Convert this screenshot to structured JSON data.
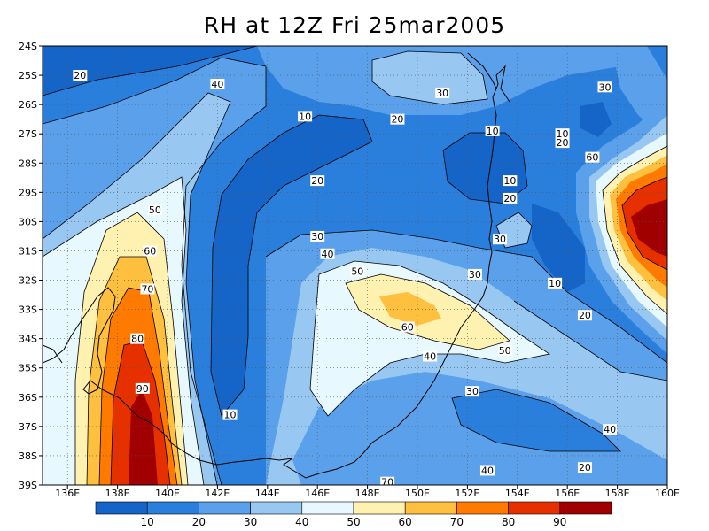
{
  "title": "RH at 12Z Fri 25mar2005",
  "chart_data": {
    "type": "heatmap",
    "variable": "RH",
    "lon_ticks": [
      "136E",
      "138E",
      "140E",
      "142E",
      "144E",
      "146E",
      "148E",
      "150E",
      "152E",
      "154E",
      "156E",
      "158E",
      "160E"
    ],
    "lon_range": [
      135,
      160
    ],
    "lat_ticks": [
      "24S",
      "25S",
      "26S",
      "27S",
      "28S",
      "29S",
      "30S",
      "31S",
      "32S",
      "33S",
      "34S",
      "35S",
      "36S",
      "37S",
      "38S",
      "39S"
    ],
    "lat_range": [
      -24,
      -39
    ],
    "grid": true,
    "colorbar": {
      "levels": [
        10,
        20,
        30,
        40,
        50,
        60,
        70,
        80,
        90
      ],
      "labels": [
        "10",
        "20",
        "30",
        "40",
        "50",
        "60",
        "70",
        "80",
        "90"
      ],
      "colors": [
        "#1565c8",
        "#2b7fdc",
        "#5aa0ea",
        "#98c8f2",
        "#e8f8ff",
        "#fff1b0",
        "#ffc040",
        "#ff7a00",
        "#e63000",
        "#a00000"
      ]
    },
    "contour_labels": [
      {
        "text": "20",
        "lon": 136.5,
        "lat": -25.0
      },
      {
        "text": "40",
        "lon": 142.0,
        "lat": -25.3
      },
      {
        "text": "10",
        "lon": 145.5,
        "lat": -26.4
      },
      {
        "text": "30",
        "lon": 151.0,
        "lat": -25.6
      },
      {
        "text": "20",
        "lon": 149.2,
        "lat": -26.5
      },
      {
        "text": "10",
        "lon": 153.0,
        "lat": -26.9
      },
      {
        "text": "30",
        "lon": 157.5,
        "lat": -25.4
      },
      {
        "text": "10",
        "lon": 155.8,
        "lat": -27.0
      },
      {
        "text": "20",
        "lon": 155.8,
        "lat": -27.3
      },
      {
        "text": "60",
        "lon": 157.0,
        "lat": -27.8
      },
      {
        "text": "20",
        "lon": 146.0,
        "lat": -28.6
      },
      {
        "text": "10",
        "lon": 153.7,
        "lat": -28.6
      },
      {
        "text": "20",
        "lon": 153.7,
        "lat": -29.2
      },
      {
        "text": "50",
        "lon": 139.5,
        "lat": -29.6
      },
      {
        "text": "30",
        "lon": 146.0,
        "lat": -30.5
      },
      {
        "text": "30",
        "lon": 153.3,
        "lat": -30.6
      },
      {
        "text": "60",
        "lon": 139.3,
        "lat": -31.0
      },
      {
        "text": "40",
        "lon": 146.4,
        "lat": -31.1
      },
      {
        "text": "50",
        "lon": 147.6,
        "lat": -31.7
      },
      {
        "text": "30",
        "lon": 152.3,
        "lat": -31.8
      },
      {
        "text": "10",
        "lon": 155.5,
        "lat": -32.1
      },
      {
        "text": "70",
        "lon": 139.2,
        "lat": -32.3
      },
      {
        "text": "60",
        "lon": 149.6,
        "lat": -33.6
      },
      {
        "text": "20",
        "lon": 156.7,
        "lat": -33.2
      },
      {
        "text": "80",
        "lon": 138.8,
        "lat": -34.0
      },
      {
        "text": "50",
        "lon": 153.5,
        "lat": -34.4
      },
      {
        "text": "40",
        "lon": 150.5,
        "lat": -34.6
      },
      {
        "text": "90",
        "lon": 139.0,
        "lat": -35.7
      },
      {
        "text": "30",
        "lon": 152.2,
        "lat": -35.8
      },
      {
        "text": "10",
        "lon": 142.5,
        "lat": -36.6
      },
      {
        "text": "40",
        "lon": 157.7,
        "lat": -37.1
      },
      {
        "text": "20",
        "lon": 156.7,
        "lat": -38.4
      },
      {
        "text": "40",
        "lon": 152.8,
        "lat": -38.5
      },
      {
        "text": "70",
        "lon": 148.8,
        "lat": -38.9
      }
    ]
  }
}
